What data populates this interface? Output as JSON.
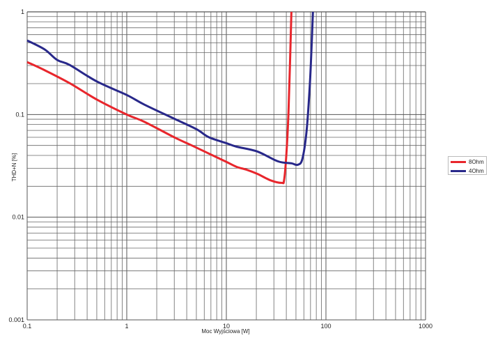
{
  "chart_data": {
    "type": "line",
    "title": "",
    "xlabel": "Moc Wyjściowa [W]",
    "ylabel": "THD+N [%]",
    "xscale": "log",
    "yscale": "log",
    "xlim": [
      0.1,
      1000
    ],
    "ylim": [
      0.001,
      1
    ],
    "x_ticks": [
      "0.1",
      "1",
      "10",
      "100",
      "1000"
    ],
    "y_ticks": [
      "0.001",
      "0.01",
      "0.1",
      "1"
    ],
    "grid": true,
    "legend_position": "right",
    "series": [
      {
        "name": "8Ohm",
        "color": "#e8262c",
        "points": [
          [
            0.1,
            0.324
          ],
          [
            0.15,
            0.27
          ],
          [
            0.267,
            0.202
          ],
          [
            0.5,
            0.14
          ],
          [
            1.0,
            0.1
          ],
          [
            1.5,
            0.085
          ],
          [
            3.0,
            0.06
          ],
          [
            4.5,
            0.05
          ],
          [
            6.7,
            0.0416
          ],
          [
            10.0,
            0.0346
          ],
          [
            12.7,
            0.0309
          ],
          [
            16.0,
            0.029
          ],
          [
            20.5,
            0.0264
          ],
          [
            28.0,
            0.0228
          ],
          [
            36.0,
            0.0216
          ],
          [
            38.0,
            0.023
          ],
          [
            40.0,
            0.04
          ],
          [
            42.0,
            0.1
          ],
          [
            43.5,
            0.3
          ],
          [
            45.0,
            1.0
          ]
        ]
      },
      {
        "name": "4Ohm",
        "color": "#28288a",
        "points": [
          [
            0.1,
            0.526
          ],
          [
            0.15,
            0.43
          ],
          [
            0.2,
            0.34
          ],
          [
            0.267,
            0.304
          ],
          [
            0.5,
            0.21
          ],
          [
            1.0,
            0.155
          ],
          [
            1.5,
            0.125
          ],
          [
            3.0,
            0.091
          ],
          [
            5.0,
            0.072
          ],
          [
            6.7,
            0.06
          ],
          [
            10.0,
            0.0526
          ],
          [
            12.7,
            0.0486
          ],
          [
            20.5,
            0.0436
          ],
          [
            33.0,
            0.035
          ],
          [
            45.0,
            0.0335
          ],
          [
            52.0,
            0.0324
          ],
          [
            58.0,
            0.037
          ],
          [
            64.0,
            0.07
          ],
          [
            69.0,
            0.2
          ],
          [
            72.0,
            0.5
          ],
          [
            74.0,
            1.0
          ]
        ]
      }
    ]
  },
  "legend": {
    "items": [
      {
        "label": "8Ohm",
        "color": "#e8262c"
      },
      {
        "label": "4Ohm",
        "color": "#28288a"
      }
    ]
  }
}
